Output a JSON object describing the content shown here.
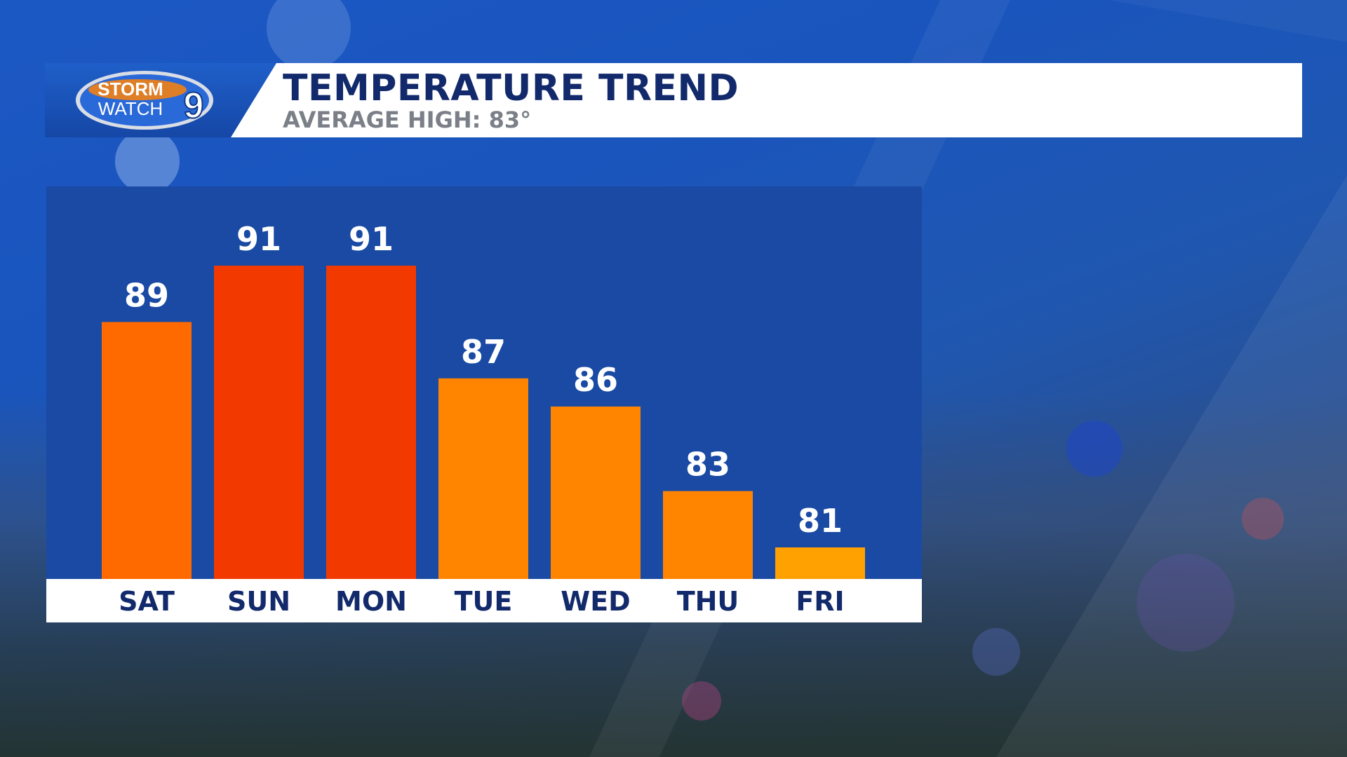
{
  "header": {
    "logo": {
      "line1": "STORM",
      "line2": "WATCH",
      "number": "9"
    },
    "title": "TEMPERATURE TREND",
    "subtitle": "AVERAGE HIGH: 83°"
  },
  "colors": {
    "bar_hot": "#f23a00",
    "bar_warm": "#ff6a00",
    "bar_mild": "#ff8500",
    "bar_cool": "#ffa100",
    "panel": "#1a4aa4",
    "title": "#122a6b"
  },
  "chart_data": {
    "type": "bar",
    "title": "TEMPERATURE TREND",
    "subtitle": "AVERAGE HIGH: 83°",
    "categories": [
      "SAT",
      "SUN",
      "MON",
      "TUE",
      "WED",
      "THU",
      "FRI"
    ],
    "values": [
      89,
      91,
      91,
      87,
      86,
      83,
      81
    ],
    "data_labels": [
      "89",
      "91",
      "91",
      "87",
      "86",
      "83",
      "81"
    ],
    "bar_colors": [
      "#ff6a00",
      "#f23a00",
      "#f23a00",
      "#ff8500",
      "#ff8500",
      "#ff8500",
      "#ffa100"
    ],
    "xlabel": "",
    "ylabel": "",
    "grid": false,
    "legend": "none"
  }
}
